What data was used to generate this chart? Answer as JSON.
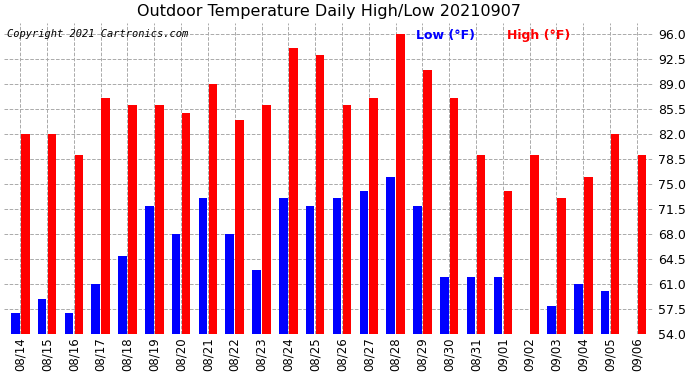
{
  "title": "Outdoor Temperature Daily High/Low 20210907",
  "copyright": "Copyright 2021 Cartronics.com",
  "legend_low": "Low (°F)",
  "legend_high": "High (°F)",
  "color_low": "#0000ff",
  "color_high": "#ff0000",
  "background_color": "#ffffff",
  "ylim": [
    54.0,
    97.5
  ],
  "yticks": [
    54.0,
    57.5,
    61.0,
    64.5,
    68.0,
    71.5,
    75.0,
    78.5,
    82.0,
    85.5,
    89.0,
    92.5,
    96.0
  ],
  "dates": [
    "08/14",
    "08/15",
    "08/16",
    "08/17",
    "08/18",
    "08/19",
    "08/20",
    "08/21",
    "08/22",
    "08/23",
    "08/24",
    "08/25",
    "08/26",
    "08/27",
    "08/28",
    "08/29",
    "08/30",
    "08/31",
    "09/01",
    "09/02",
    "09/03",
    "09/04",
    "09/05",
    "09/06"
  ],
  "highs": [
    82,
    82,
    79,
    87,
    86,
    86,
    85,
    89,
    84,
    86,
    94,
    93,
    86,
    87,
    96,
    91,
    87,
    79,
    74,
    79,
    73,
    76,
    82,
    79
  ],
  "lows": [
    57,
    59,
    57,
    61,
    65,
    72,
    68,
    73,
    68,
    63,
    73,
    72,
    73,
    74,
    76,
    72,
    62,
    62,
    62,
    54,
    58,
    61,
    60,
    54
  ],
  "bar_width": 0.32,
  "bar_gap": 0.05
}
